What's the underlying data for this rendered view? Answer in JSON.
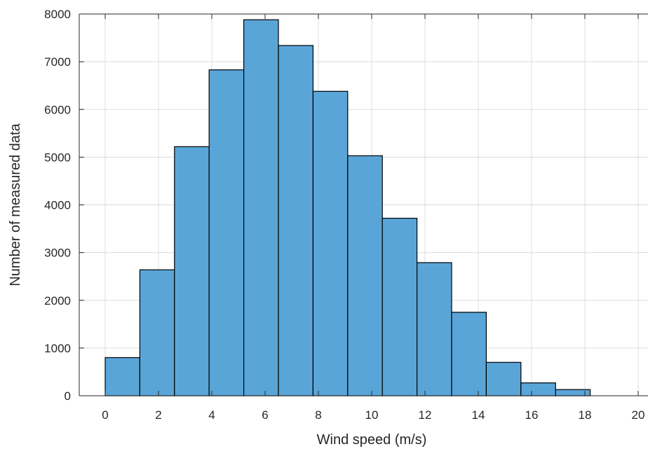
{
  "chart_data": {
    "type": "bar",
    "title": "",
    "xlabel": "Wind speed (m/s)",
    "ylabel": "Number of measured data",
    "bin_edges": [
      0,
      1.3,
      2.6,
      3.9,
      5.2,
      6.5,
      7.8,
      9.1,
      10.4,
      11.7,
      13.0,
      14.3,
      15.6,
      16.9,
      18.2
    ],
    "values": [
      800,
      2640,
      5220,
      6830,
      7880,
      7340,
      6380,
      5030,
      3720,
      2790,
      1750,
      700,
      270,
      130
    ],
    "xlim": [
      -1,
      20
    ],
    "ylim": [
      0,
      8000
    ],
    "xticks": [
      0,
      2,
      4,
      6,
      8,
      10,
      12,
      14,
      16,
      18,
      20
    ],
    "xtick_labels": [
      "0",
      "2",
      "4",
      "6",
      "8",
      "10",
      "12",
      "14",
      "16",
      "18",
      "20"
    ],
    "yticks": [
      0,
      1000,
      2000,
      3000,
      4000,
      5000,
      6000,
      7000,
      8000
    ],
    "ytick_labels": [
      "0",
      "1000",
      "2000",
      "3000",
      "4000",
      "5000",
      "6000",
      "7000",
      "8000"
    ],
    "grid": true,
    "bar_color": "#5aa5d8",
    "bar_edge_color": "#000000",
    "grid_color": "#dcdcdc",
    "axis_color": "#262626"
  }
}
